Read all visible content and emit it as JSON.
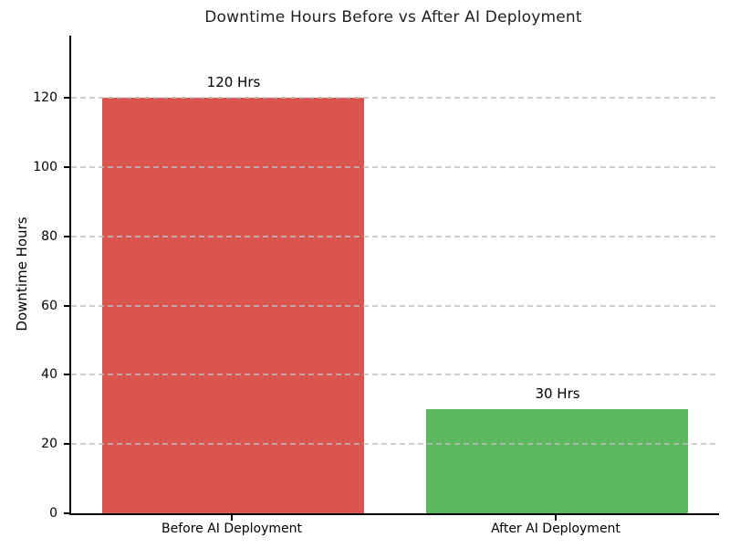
{
  "chart_data": {
    "type": "bar",
    "title": "Downtime Hours Before vs After AI Deployment",
    "xlabel": "",
    "ylabel": "Downtime Hours",
    "categories": [
      "Before AI Deployment",
      "After AI Deployment"
    ],
    "values": [
      120,
      30
    ],
    "bar_value_labels": [
      "120 Hrs",
      "30 Hrs"
    ],
    "bar_colors": [
      "#d9534f",
      "#5cb85c"
    ],
    "yticks": [
      0,
      20,
      40,
      60,
      80,
      100,
      120
    ],
    "ylim": [
      0,
      138
    ],
    "grid": "horizontal-dashed",
    "grid_color": "#bebebe",
    "legend_position": "none",
    "spines": [
      "left",
      "bottom"
    ]
  }
}
